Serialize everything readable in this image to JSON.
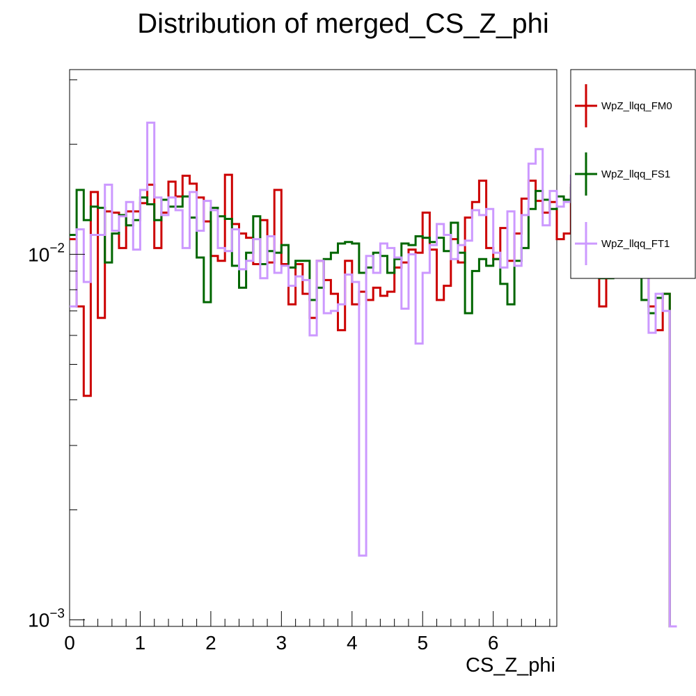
{
  "chart_data": {
    "type": "histogram-step",
    "title": "Distribution of merged_CS_Z_phi",
    "xlabel": "CS_Z_phi",
    "ylabel": "",
    "xlim": [
      0,
      6.9
    ],
    "ylim": [
      0.00096,
      0.032
    ],
    "y_scale": "log",
    "bin_width": 0.1,
    "x_ticks": [
      "0",
      "1",
      "2",
      "3",
      "4",
      "5",
      "6"
    ],
    "y_ticks": [
      {
        "value": 0.01,
        "mantissa": "10",
        "exponent": "−2"
      },
      {
        "value": 0.001,
        "mantissa": "10",
        "exponent": "−3"
      }
    ],
    "legend_position": "right, outside plot area",
    "series": [
      {
        "name": "WpZ_llqq_FM0",
        "color": "#cc0000",
        "values": [
          0.011,
          0.0072,
          0.0041,
          0.0148,
          0.0067,
          0.0131,
          0.013,
          0.0104,
          0.0131,
          0.0131,
          0.0138,
          0.0155,
          0.0104,
          0.013,
          0.0158,
          0.0144,
          0.0164,
          0.0156,
          0.0143,
          0.0123,
          0.0099,
          0.0096,
          0.0165,
          0.0121,
          0.0114,
          0.0111,
          0.0094,
          0.0124,
          0.0095,
          0.015,
          0.0094,
          0.0073,
          0.0094,
          0.0078,
          0.0067,
          0.0096,
          0.0085,
          0.0078,
          0.0062,
          0.0096,
          0.0073,
          0.0079,
          0.0075,
          0.0081,
          0.0077,
          0.0079,
          0.0092,
          0.0095,
          0.0103,
          0.0101,
          0.013,
          0.0103,
          0.0075,
          0.0082,
          0.011,
          0.0095,
          0.0126,
          0.0139,
          0.0159,
          0.0104,
          0.0097,
          0.0118,
          0.0096,
          0.0114,
          0.0142,
          0.0159,
          0.014,
          0.013,
          0.0139,
          0.011,
          0.0114,
          0.0155,
          0.0152,
          0.0141,
          0.009,
          0.0072,
          0.0113,
          0.0102,
          0.0108,
          0.0114,
          0.0098,
          0.0092,
          0.0072,
          0.0062,
          0.0078,
          0
        ]
      },
      {
        "name": "WpZ_llqq_FS1",
        "color": "#006600",
        "values": [
          0.0113,
          0.015,
          0.0124,
          0.0135,
          0.0134,
          0.0095,
          0.0114,
          0.0128,
          0.012,
          0.0124,
          0.0143,
          0.0137,
          0.0124,
          0.0141,
          0.0135,
          0.0135,
          0.0144,
          0.0126,
          0.0098,
          0.0074,
          0.0134,
          0.0127,
          0.0125,
          0.0093,
          0.0081,
          0.0101,
          0.0127,
          0.0094,
          0.0102,
          0.0101,
          0.0106,
          0.0092,
          0.0096,
          0.0096,
          0.0075,
          0.0081,
          0.0097,
          0.0101,
          0.0107,
          0.0108,
          0.0107,
          0.0089,
          0.0092,
          0.0101,
          0.0099,
          0.0089,
          0.0097,
          0.0107,
          0.0106,
          0.0112,
          0.0111,
          0.0108,
          0.0111,
          0.0102,
          0.0122,
          0.0101,
          0.0069,
          0.009,
          0.0097,
          0.0093,
          0.0097,
          0.0083,
          0.0073,
          0.0096,
          0.0104,
          0.0133,
          0.0149,
          0.0141,
          0.0133,
          0.0144,
          0.0141,
          0.0152,
          0.0162,
          0.0189,
          0.0092,
          0.0086,
          0.0086,
          0.0103,
          0.0108,
          0.013,
          0.0111,
          0.0075,
          0.0069,
          0.0076,
          0.0078,
          0
        ]
      },
      {
        "name": "WpZ_llqq_FT1",
        "color": "#cc99ff",
        "values": [
          0.0072,
          0.0117,
          0.0084,
          0.0113,
          0.0113,
          0.0155,
          0.0116,
          0.0127,
          0.0139,
          0.0103,
          0.015,
          0.0229,
          0.0143,
          0.0128,
          0.0143,
          0.0132,
          0.0104,
          0.0148,
          0.0116,
          0.014,
          0.0132,
          0.0104,
          0.0102,
          0.0117,
          0.0091,
          0.0096,
          0.011,
          0.0086,
          0.0112,
          0.0089,
          0.0093,
          0.0082,
          0.0087,
          0.0085,
          0.006,
          0.0096,
          0.0069,
          0.007,
          0.0073,
          0.0088,
          0.0084,
          0.0015,
          0.0099,
          0.0089,
          0.0107,
          0.0104,
          0.0098,
          0.0071,
          0.01,
          0.0057,
          0.0089,
          0.0106,
          0.0121,
          0.0113,
          0.0097,
          0.0106,
          0.0109,
          0.0132,
          0.0128,
          0.0133,
          0.0101,
          0.0092,
          0.0131,
          0.0093,
          0.0128,
          0.0177,
          0.0194,
          0.012,
          0.0149,
          0.0135,
          0.0139,
          0.0164,
          0.0152,
          0.0109,
          0.0131,
          0.0135,
          0.0204,
          0.0156,
          0.013,
          0.0126,
          0.0178,
          0.0149,
          0.0061,
          0.0078,
          0.007,
          0.0001
        ]
      }
    ]
  }
}
